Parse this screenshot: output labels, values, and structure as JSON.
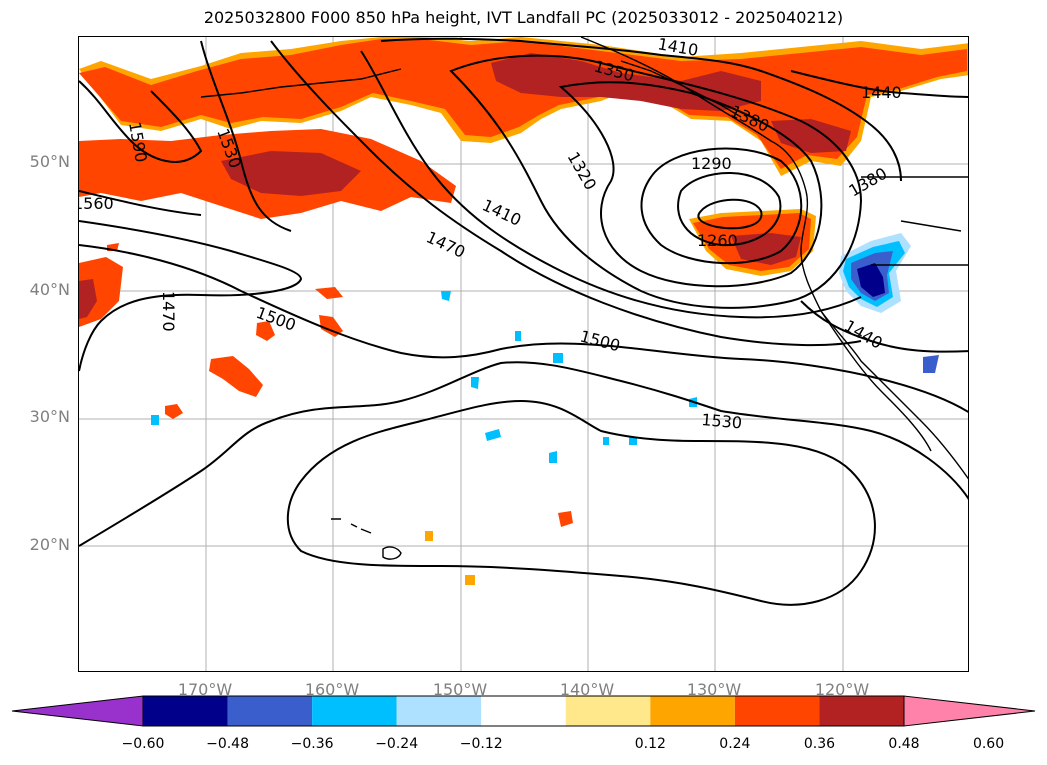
{
  "title": "2025032800 F000 850 hPa height, IVT Landfall PC (2025033012 - 2025040212)",
  "map": {
    "lat_labels": [
      "50°N",
      "40°N",
      "30°N",
      "20°N"
    ],
    "lon_labels": [
      "170°W",
      "160°W",
      "150°W",
      "140°W",
      "130°W",
      "120°W"
    ],
    "contour_labels": [
      "1590",
      "1530",
      "1560",
      "1470",
      "1500",
      "1470",
      "1410",
      "1350",
      "1320",
      "1290",
      "1260",
      "1380",
      "1380",
      "1440",
      "1440",
      "1500",
      "1530",
      "1410"
    ],
    "shading_colors": {
      "deep_red": "#b22222",
      "red_orange": "#ff4500",
      "orange": "#ffa500",
      "yellow": "#ffe88c",
      "light_blue": "#aee0ff",
      "cyan_blue": "#00bfff",
      "royal_blue": "#3a5fcd",
      "navy": "#00008b"
    }
  },
  "colorbar": {
    "colors": [
      "#9932cc",
      "#00008b",
      "#3a5fcd",
      "#00bfff",
      "#aee0ff",
      "#ffffff",
      "#ffe88c",
      "#ffa500",
      "#ff4500",
      "#b22222",
      "#ff82ab"
    ],
    "tick_labels": [
      "−0.60",
      "−0.48",
      "−0.36",
      "−0.24",
      "−0.12",
      "0.12",
      "0.24",
      "0.36",
      "0.48",
      "0.60"
    ]
  }
}
